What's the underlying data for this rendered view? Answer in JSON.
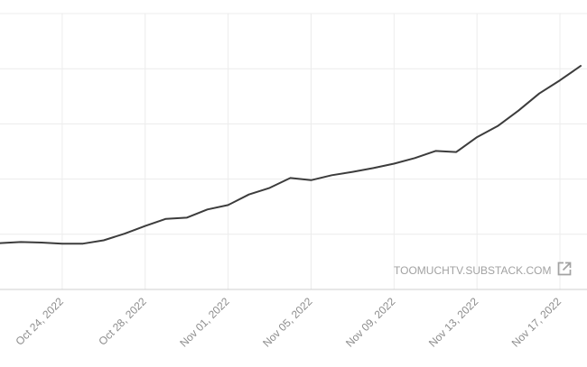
{
  "watermark": {
    "text": "TOOMUCHTV.SUBSTACK.COM",
    "icon": "external-link-icon"
  },
  "colors": {
    "line": "#3c3c3c",
    "grid": "#ececec",
    "axis": "#cfcfcf",
    "tick_text": "#8c8c8c",
    "watermark": "#a2a2a2"
  },
  "chart_data": {
    "type": "line",
    "title": "",
    "xlabel": "",
    "ylabel": "",
    "grid": true,
    "legend": "none",
    "x_tick_labels": [
      "Oct 24, 2022",
      "Oct 28, 2022",
      "Nov 01, 2022",
      "Nov 05, 2022",
      "Nov 09, 2022",
      "Nov 13, 2022",
      "Nov 17, 2022"
    ],
    "x_tick_dates": [
      "2022-10-24",
      "2022-10-28",
      "2022-11-01",
      "2022-11-05",
      "2022-11-09",
      "2022-11-13",
      "2022-11-17"
    ],
    "x_range": [
      "2022-10-21",
      "2022-11-18"
    ],
    "y_range": [
      0,
      5
    ],
    "series": [
      {
        "points": [
          [
            "2022-10-21",
            0.84
          ],
          [
            "2022-10-22",
            0.86
          ],
          [
            "2022-10-23",
            0.85
          ],
          [
            "2022-10-24",
            0.83
          ],
          [
            "2022-10-25",
            0.83
          ],
          [
            "2022-10-26",
            0.89
          ],
          [
            "2022-10-27",
            1.01
          ],
          [
            "2022-10-28",
            1.15
          ],
          [
            "2022-10-29",
            1.28
          ],
          [
            "2022-10-30",
            1.3
          ],
          [
            "2022-10-31",
            1.45
          ],
          [
            "2022-11-01",
            1.53
          ],
          [
            "2022-11-02",
            1.72
          ],
          [
            "2022-11-03",
            1.84
          ],
          [
            "2022-11-04",
            2.02
          ],
          [
            "2022-11-05",
            1.98
          ],
          [
            "2022-11-06",
            2.07
          ],
          [
            "2022-11-07",
            2.13
          ],
          [
            "2022-11-08",
            2.2
          ],
          [
            "2022-11-09",
            2.28
          ],
          [
            "2022-11-10",
            2.38
          ],
          [
            "2022-11-11",
            2.51
          ],
          [
            "2022-11-12",
            2.49
          ],
          [
            "2022-11-13",
            2.76
          ],
          [
            "2022-11-14",
            2.96
          ],
          [
            "2022-11-15",
            3.24
          ],
          [
            "2022-11-16",
            3.55
          ],
          [
            "2022-11-17",
            3.79
          ],
          [
            "2022-11-18",
            4.05
          ]
        ]
      }
    ]
  }
}
